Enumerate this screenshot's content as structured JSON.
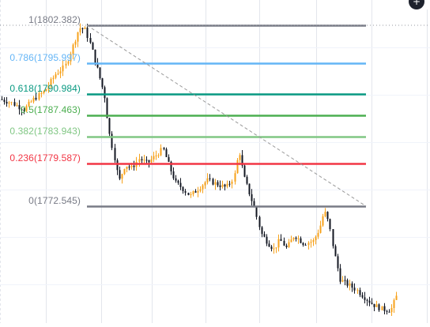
{
  "colors": {
    "background": "#ffffff",
    "grid": "#e3e6ec",
    "candle_up": "#f7a21b",
    "candle_down": "#131722",
    "trend_line": "#9a9a9a"
  },
  "fib_levels": [
    {
      "label": "1(1802.382)",
      "ratio": 1,
      "price": 1802.382,
      "color": "#787b86"
    },
    {
      "label": "0.786(1795.997)",
      "ratio": 0.786,
      "price": 1795.997,
      "color": "#64b5f6"
    },
    {
      "label": "0.618(1790.984)",
      "ratio": 0.618,
      "price": 1790.984,
      "color": "#089981"
    },
    {
      "label": "0.5(1787.463)",
      "ratio": 0.5,
      "price": 1787.463,
      "color": "#4caf50"
    },
    {
      "label": "0.382(1783.943)",
      "ratio": 0.382,
      "price": 1783.943,
      "color": "#81c784"
    },
    {
      "label": "0.236(1779.587)",
      "ratio": 0.236,
      "price": 1779.587,
      "color": "#f23645"
    },
    {
      "label": "0(1772.545)",
      "ratio": 0,
      "price": 1772.545,
      "color": "#787b86"
    }
  ],
  "icons": {
    "top_right_button": "add-icon"
  }
}
